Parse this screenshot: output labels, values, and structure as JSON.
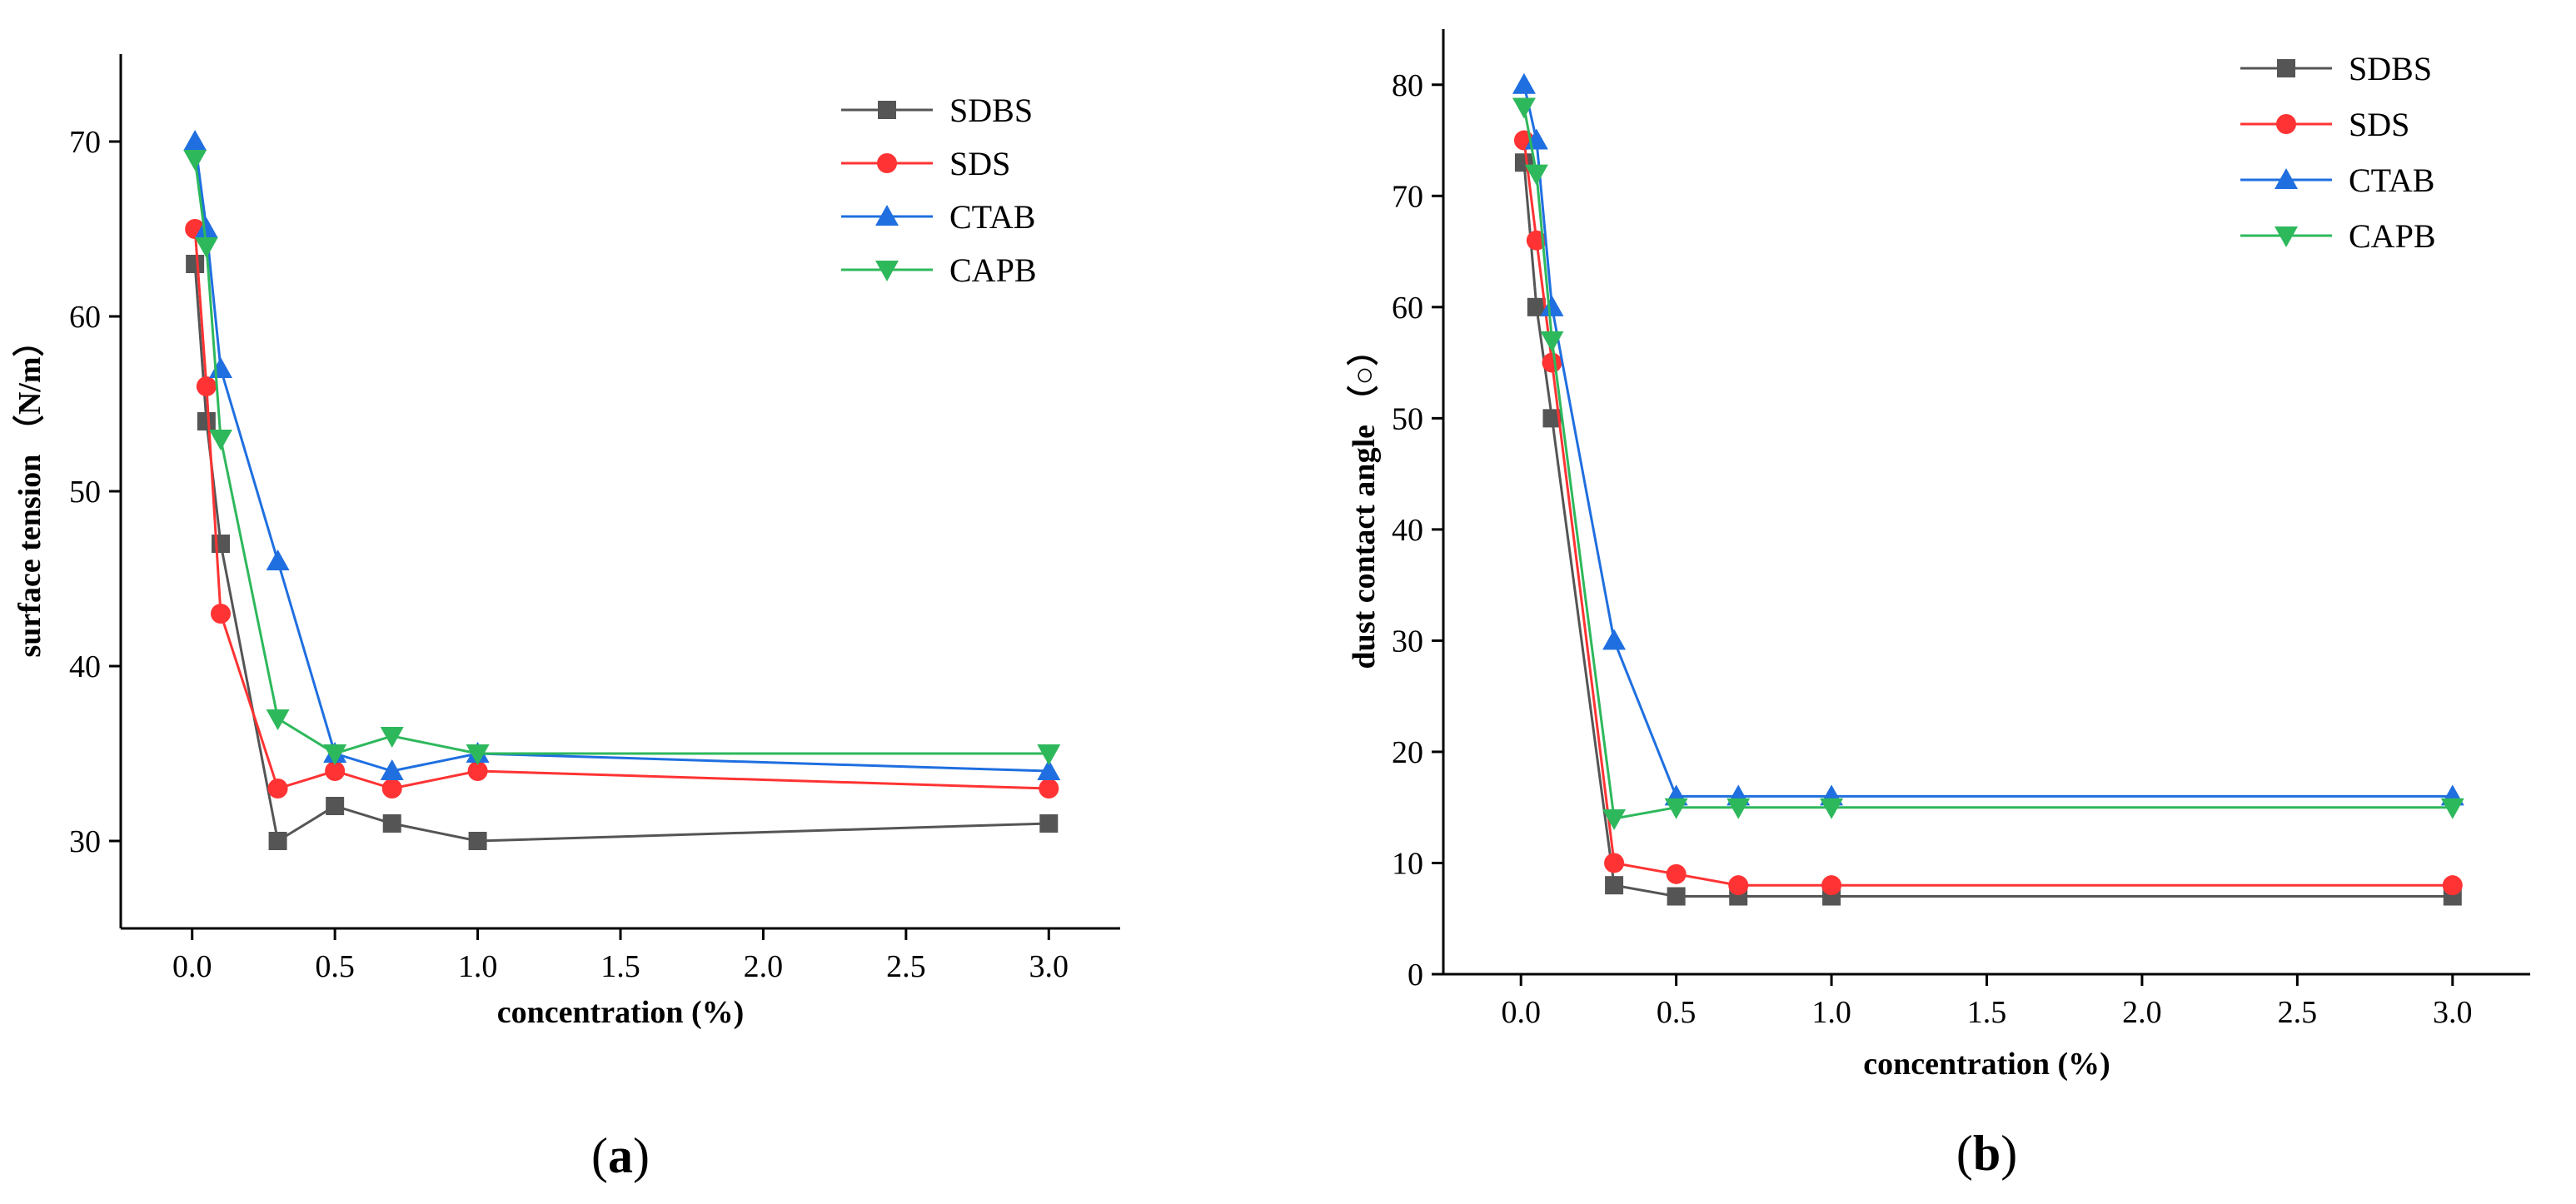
{
  "chart_data": [
    {
      "type": "line",
      "panel": "(a)",
      "caption_letter": "a",
      "xlabel": "concentration (%)",
      "ylabel": "surface tension （N/m）",
      "xlim": [
        -0.25,
        3.25
      ],
      "ylim": [
        25,
        75
      ],
      "xticks": [
        0.0,
        0.5,
        1.0,
        1.5,
        2.0,
        2.5,
        3.0
      ],
      "xtick_labels": [
        "0.0",
        "0.5",
        "1.0",
        "1.5",
        "2.0",
        "2.5",
        "3.0"
      ],
      "yticks": [
        30,
        40,
        50,
        60,
        70
      ],
      "ytick_labels": [
        "30",
        "40",
        "50",
        "60",
        "70"
      ],
      "legend_position": "top-right",
      "x": [
        0.01,
        0.05,
        0.1,
        0.3,
        0.5,
        0.7,
        1.0,
        3.0
      ],
      "series": [
        {
          "name": "SDBS",
          "color": "#555555",
          "marker": "square",
          "values": [
            63,
            54,
            47,
            30,
            32,
            31,
            30,
            31
          ]
        },
        {
          "name": "SDS",
          "color": "#ff3333",
          "marker": "circle",
          "values": [
            65,
            56,
            43,
            33,
            34,
            33,
            34,
            33
          ]
        },
        {
          "name": "CTAB",
          "color": "#1f6fe0",
          "marker": "triangle-up",
          "values": [
            70,
            65,
            57,
            46,
            35,
            34,
            35,
            34
          ]
        },
        {
          "name": "CAPB",
          "color": "#2eb85c",
          "marker": "triangle-down",
          "values": [
            69,
            64,
            53,
            37,
            35,
            36,
            35,
            35
          ]
        }
      ]
    },
    {
      "type": "line",
      "panel": "(b)",
      "caption_letter": "b",
      "xlabel": "concentration (%)",
      "ylabel": "dust contact angle （○）",
      "xlim": [
        -0.25,
        3.25
      ],
      "ylim": [
        0,
        85
      ],
      "xticks": [
        0.0,
        0.5,
        1.0,
        1.5,
        2.0,
        2.5,
        3.0
      ],
      "xtick_labels": [
        "0.0",
        "0.5",
        "1.0",
        "1.5",
        "2.0",
        "2.5",
        "3.0"
      ],
      "yticks": [
        0,
        10,
        20,
        30,
        40,
        50,
        60,
        70,
        80
      ],
      "ytick_labels": [
        "0",
        "10",
        "20",
        "30",
        "40",
        "50",
        "60",
        "70",
        "80"
      ],
      "legend_position": "top-right",
      "x": [
        0.01,
        0.05,
        0.1,
        0.3,
        0.5,
        0.7,
        1.0,
        3.0
      ],
      "series": [
        {
          "name": "SDBS",
          "color": "#555555",
          "marker": "square",
          "values": [
            73,
            60,
            50,
            8,
            7,
            7,
            7,
            7
          ]
        },
        {
          "name": "SDS",
          "color": "#ff3333",
          "marker": "circle",
          "values": [
            75,
            66,
            55,
            10,
            9,
            8,
            8,
            8
          ]
        },
        {
          "name": "CTAB",
          "color": "#1f6fe0",
          "marker": "triangle-up",
          "values": [
            80,
            75,
            60,
            30,
            16,
            16,
            16,
            16
          ]
        },
        {
          "name": "CAPB",
          "color": "#2eb85c",
          "marker": "triangle-down",
          "values": [
            78,
            72,
            57,
            14,
            15,
            15,
            15,
            15
          ]
        }
      ]
    }
  ]
}
